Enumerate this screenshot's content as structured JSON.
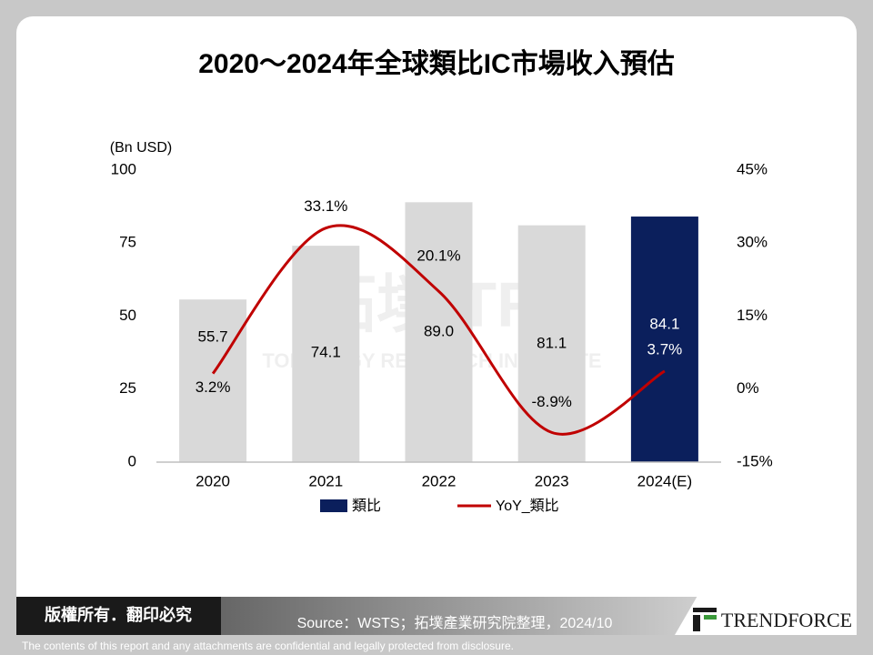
{
  "chart_data": {
    "type": "bar_line",
    "title": "2020～2024年全球類比IC市場收入預估",
    "y_unit_label": "(Bn USD)",
    "categories": [
      "2020",
      "2021",
      "2022",
      "2023",
      "2024(E)"
    ],
    "ylim": [
      0,
      100
    ],
    "yticks": [
      0,
      25,
      50,
      75,
      100
    ],
    "y2lim": [
      -15,
      45
    ],
    "y2ticks": [
      {
        "value": -15,
        "label": "-15%"
      },
      {
        "value": 0,
        "label": "0%"
      },
      {
        "value": 15,
        "label": "15%"
      },
      {
        "value": 30,
        "label": "30%"
      },
      {
        "value": 45,
        "label": "45%"
      }
    ],
    "grid": false,
    "series": [
      {
        "name": "類比",
        "color": "#0b1f5c",
        "colors": [
          "#d9d9d9",
          "#d9d9d9",
          "#d9d9d9",
          "#d9d9d9",
          "#0b1f5c"
        ],
        "values": [
          55.7,
          74.1,
          89.0,
          81.1,
          84.1
        ],
        "value_labels": [
          "55.7",
          "74.1",
          "89.0",
          "81.1",
          "84.1"
        ]
      },
      {
        "name": "YoY_類比",
        "color": "#c00000",
        "axis": "y2",
        "values": [
          3.2,
          33.1,
          20.1,
          -8.9,
          3.7
        ],
        "value_labels": [
          "3.2%",
          "33.1%",
          "20.1%",
          "-8.9%",
          "3.7%"
        ]
      }
    ],
    "watermark": [
      "拓墣 TRi",
      "TOPOLOGY RESEARCH INSTITUTE"
    ]
  },
  "footer": {
    "rights": "版權所有．翻印必究",
    "source": "Source：WSTS；拓墣產業研究院整理，2024/10",
    "logo": "TRENDFORCE",
    "disclaimer": "The contents of this report and any attachments are confidential and legally protected from disclosure."
  }
}
